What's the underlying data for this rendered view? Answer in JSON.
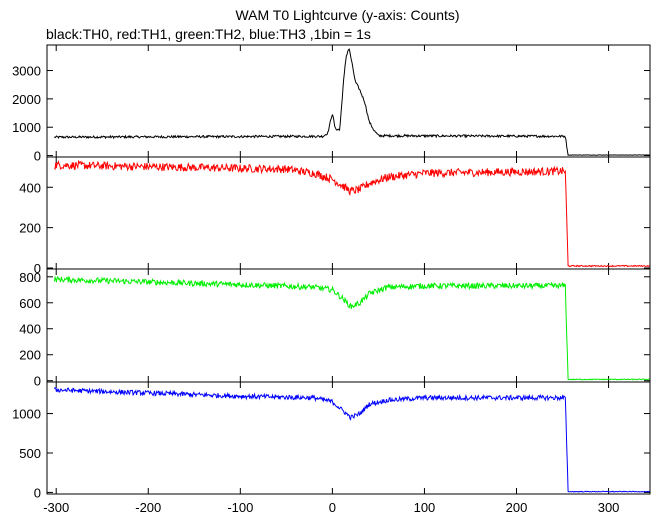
{
  "title": "WAM T0 Lightcurve (y-axis: Counts)",
  "subtitle": "black:TH0, red:TH1, green:TH2, blue:TH3 ,1bin = 1s",
  "chart_data": [
    {
      "type": "line",
      "series": [
        {
          "color": "#000000",
          "points": [
            [
              -300,
              650
            ],
            [
              -10,
              680
            ],
            [
              -5,
              800
            ],
            [
              0,
              1500
            ],
            [
              3,
              950
            ],
            [
              8,
              900
            ],
            [
              12,
              2600
            ],
            [
              15,
              3500
            ],
            [
              18,
              3800
            ],
            [
              21,
              3300
            ],
            [
              25,
              2600
            ],
            [
              30,
              2300
            ],
            [
              35,
              1900
            ],
            [
              40,
              1200
            ],
            [
              45,
              900
            ],
            [
              50,
              700
            ],
            [
              253,
              680
            ],
            [
              256,
              20
            ],
            [
              345,
              20
            ]
          ]
        }
      ],
      "xlim": [
        -310,
        345
      ],
      "ylim": [
        -50,
        3900
      ],
      "yticks": [
        "0",
        "1000",
        "2000",
        "3000"
      ],
      "noise": 40,
      "color": "#000000"
    },
    {
      "type": "line",
      "series": [
        {
          "color": "#ff0000",
          "points": [
            [
              -300,
              510
            ],
            [
              -50,
              490
            ],
            [
              -20,
              470
            ],
            [
              0,
              440
            ],
            [
              10,
              410
            ],
            [
              20,
              380
            ],
            [
              30,
              390
            ],
            [
              40,
              420
            ],
            [
              60,
              450
            ],
            [
              100,
              470
            ],
            [
              253,
              480
            ],
            [
              256,
              10
            ],
            [
              345,
              10
            ]
          ]
        }
      ],
      "xlim": [
        -310,
        345
      ],
      "ylim": [
        -5,
        550
      ],
      "yticks": [
        "0",
        "200",
        "400"
      ],
      "noise": 20,
      "color": "#ff0000"
    },
    {
      "type": "line",
      "series": [
        {
          "color": "#00ee00",
          "points": [
            [
              -300,
              780
            ],
            [
              -100,
              740
            ],
            [
              -20,
              720
            ],
            [
              0,
              700
            ],
            [
              10,
              640
            ],
            [
              20,
              570
            ],
            [
              30,
              600
            ],
            [
              40,
              670
            ],
            [
              60,
              720
            ],
            [
              100,
              730
            ],
            [
              253,
              730
            ],
            [
              256,
              10
            ],
            [
              345,
              10
            ]
          ]
        }
      ],
      "xlim": [
        -310,
        345
      ],
      "ylim": [
        -10,
        860
      ],
      "yticks": [
        "0",
        "200",
        "400",
        "600",
        "800"
      ],
      "noise": 22,
      "color": "#00ee00"
    },
    {
      "type": "line",
      "series": [
        {
          "color": "#0000ff",
          "points": [
            [
              -300,
              1300
            ],
            [
              -100,
              1220
            ],
            [
              -20,
              1200
            ],
            [
              0,
              1150
            ],
            [
              10,
              1050
            ],
            [
              20,
              950
            ],
            [
              30,
              1000
            ],
            [
              40,
              1120
            ],
            [
              60,
              1170
            ],
            [
              100,
              1200
            ],
            [
              253,
              1200
            ],
            [
              256,
              10
            ],
            [
              345,
              10
            ]
          ]
        }
      ],
      "xlim": [
        -310,
        345
      ],
      "ylim": [
        -20,
        1400
      ],
      "yticks": [
        "0",
        "500",
        "1000"
      ],
      "noise": 30,
      "color": "#0000ff"
    }
  ],
  "xaxis": {
    "ticks": [
      "-300",
      "-200",
      "-100",
      "0",
      "100",
      "200",
      "300"
    ]
  }
}
